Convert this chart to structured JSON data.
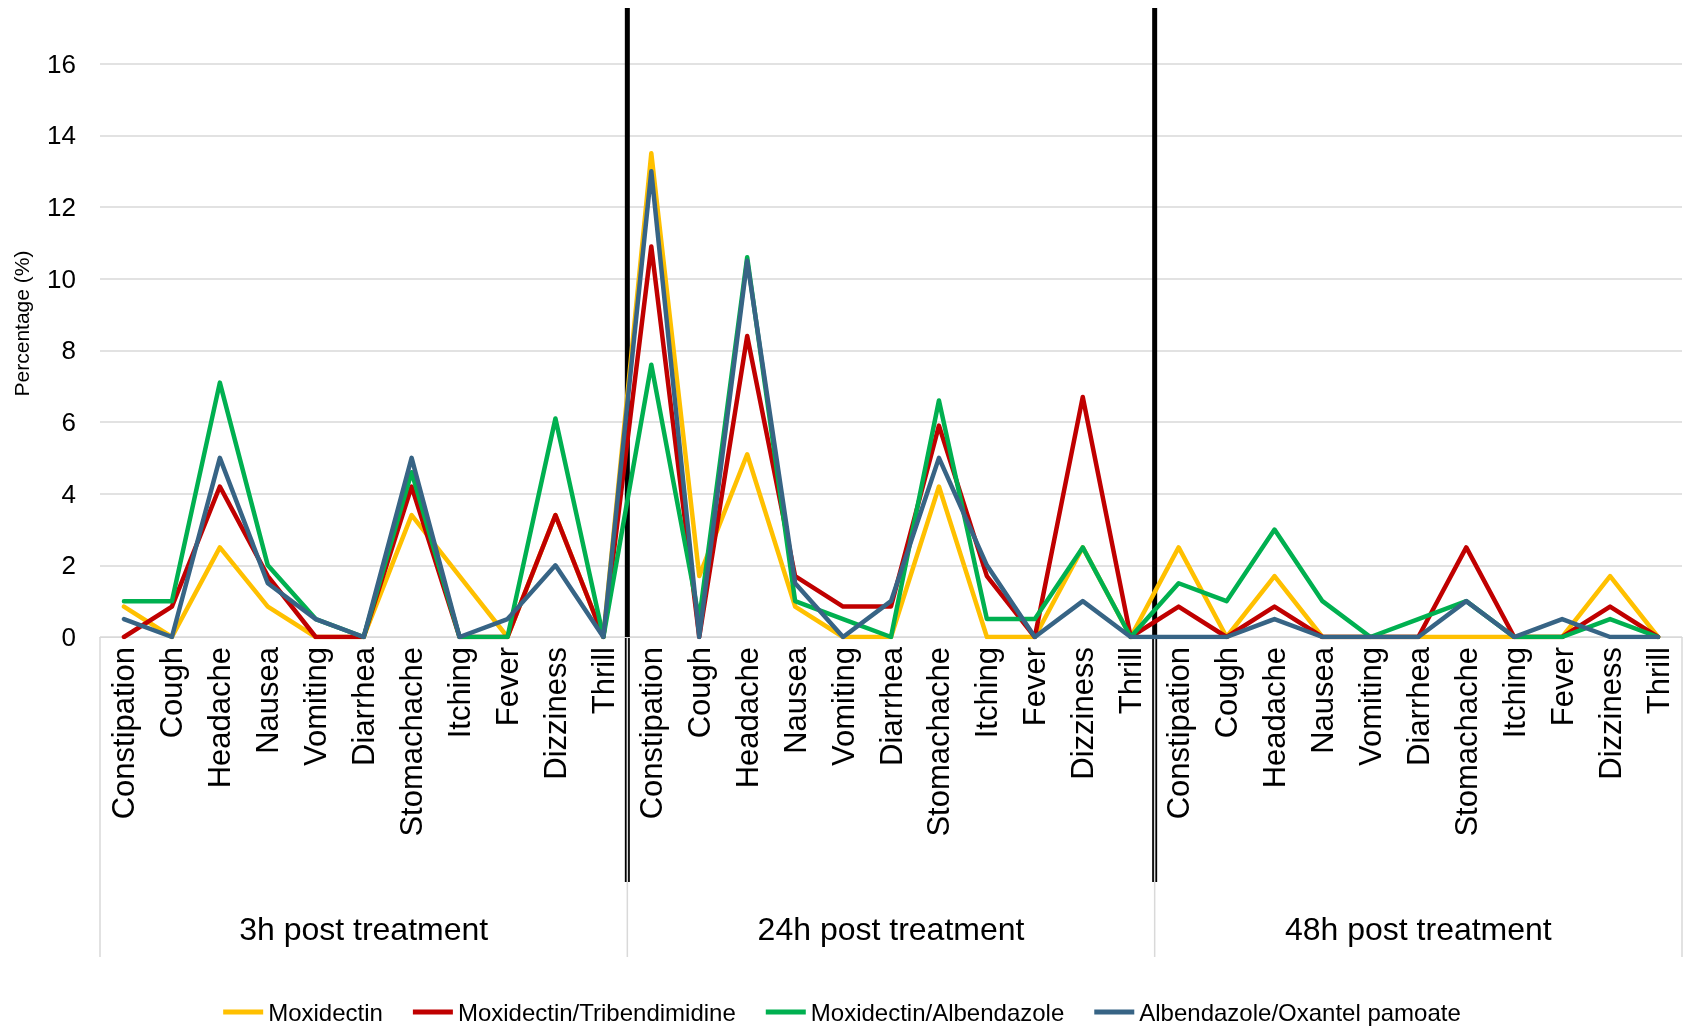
{
  "chart_data": {
    "type": "line",
    "ylabel": "Percentage (%)",
    "categories": [
      "Constipation",
      "Cough",
      "Headache",
      "Nausea",
      "Vomiting",
      "Diarrhea",
      "Stomachache",
      "Itching",
      "Fever",
      "Dizziness",
      "Thrill",
      "Constipation",
      "Cough",
      "Headache",
      "Nausea",
      "Vomiting",
      "Diarrhea",
      "Stomachache",
      "Itching",
      "Fever",
      "Dizziness",
      "Thrill",
      "Constipation",
      "Cough",
      "Headache",
      "Nausea",
      "Vomiting",
      "Diarrhea",
      "Stomachache",
      "Itching",
      "Fever",
      "Dizziness",
      "Thrill"
    ],
    "series": [
      {
        "name": "Moxidectin",
        "color": "#ffc000",
        "values": [
          0.85,
          0,
          2.5,
          0.85,
          0,
          0,
          3.4,
          1.7,
          0,
          3.4,
          0,
          13.5,
          1.7,
          5.1,
          0.85,
          0,
          0,
          4.2,
          0,
          0,
          2.5,
          0,
          2.5,
          0,
          1.7,
          0,
          0,
          0,
          0,
          0,
          0,
          1.7,
          0
        ]
      },
      {
        "name": "Moxidectin/Tribendimidine",
        "color": "#c00000",
        "values": [
          0,
          0.85,
          4.2,
          1.7,
          0,
          0,
          4.2,
          0,
          0,
          3.4,
          0,
          10.9,
          0,
          8.4,
          1.7,
          0.85,
          0.85,
          5.9,
          1.7,
          0,
          6.7,
          0,
          0.85,
          0,
          0.85,
          0,
          0,
          0,
          2.5,
          0,
          0,
          0.85,
          0
        ]
      },
      {
        "name": "Moxidectin/Albendazole",
        "color": "#00b050",
        "values": [
          1,
          1,
          7.1,
          2,
          0.5,
          0,
          4.6,
          0,
          0,
          6.1,
          0,
          7.6,
          0.5,
          10.6,
          1,
          0.5,
          0,
          6.6,
          0.5,
          0.5,
          2.5,
          0,
          1.5,
          1,
          3,
          1,
          0,
          0.5,
          1,
          0,
          0,
          0.5,
          0
        ]
      },
      {
        "name": "Albendazole/Oxantel pamoate",
        "color": "#376485",
        "values": [
          0.5,
          0,
          5,
          1.5,
          0.5,
          0,
          5,
          0,
          0.5,
          2,
          0,
          13,
          0,
          10.5,
          1.5,
          0,
          1,
          5,
          2,
          0,
          1,
          0,
          0,
          0,
          0.5,
          0,
          0,
          0,
          1,
          0,
          0.5,
          0,
          0
        ]
      }
    ],
    "annotations": [
      "3h post treatment",
      "24h post treatment",
      "48h post treatment"
    ],
    "ylim": [
      0,
      17.5
    ],
    "yticks": [
      0,
      2,
      4,
      6,
      8,
      10,
      12,
      14,
      16
    ],
    "grid": "y",
    "legend": "bottom",
    "marker": "none",
    "line_style": "solid"
  }
}
